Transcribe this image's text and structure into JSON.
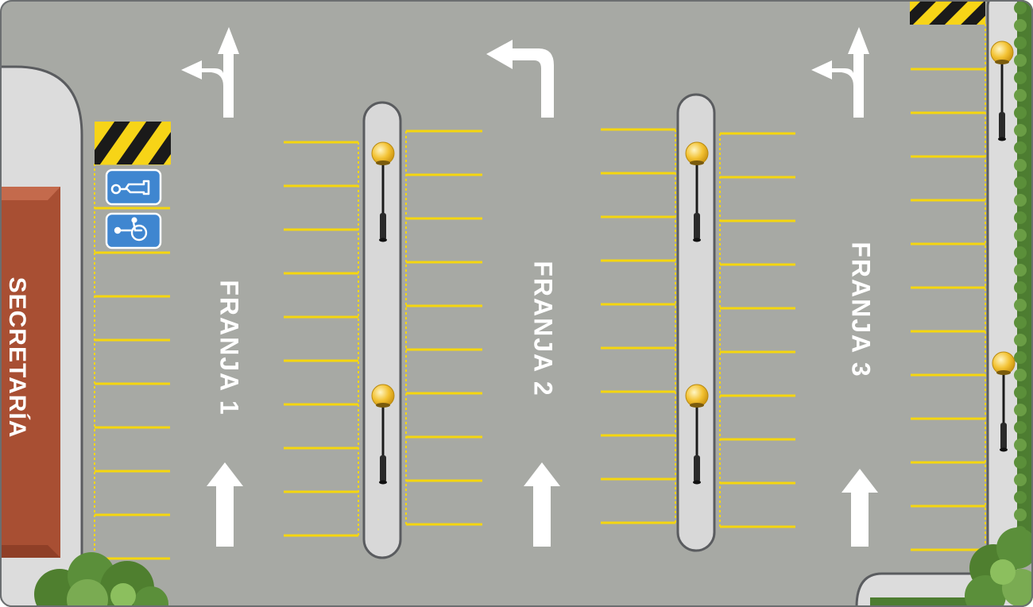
{
  "building": {
    "label": "SECRETARÍA"
  },
  "lanes": [
    {
      "label": "FRANJA 1"
    },
    {
      "label": "FRANJA 2"
    },
    {
      "label": "FRANJA 3"
    }
  ],
  "icons": {
    "ev_charging": "ev-charging-icon",
    "accessible": "wheelchair-icon"
  },
  "colors": {
    "asphalt": "#a7a9a4",
    "line_yellow": "#f5d60f",
    "building": "#a84f33",
    "island": "#d8d8d8",
    "island_border": "#5a5c5f",
    "sidewalk": "#dddddd",
    "hedge": "#5b8f3a",
    "hazard_yellow": "#f7d417",
    "badge_blue": "#3f86d0",
    "lamp_glow": "#f3c233"
  }
}
